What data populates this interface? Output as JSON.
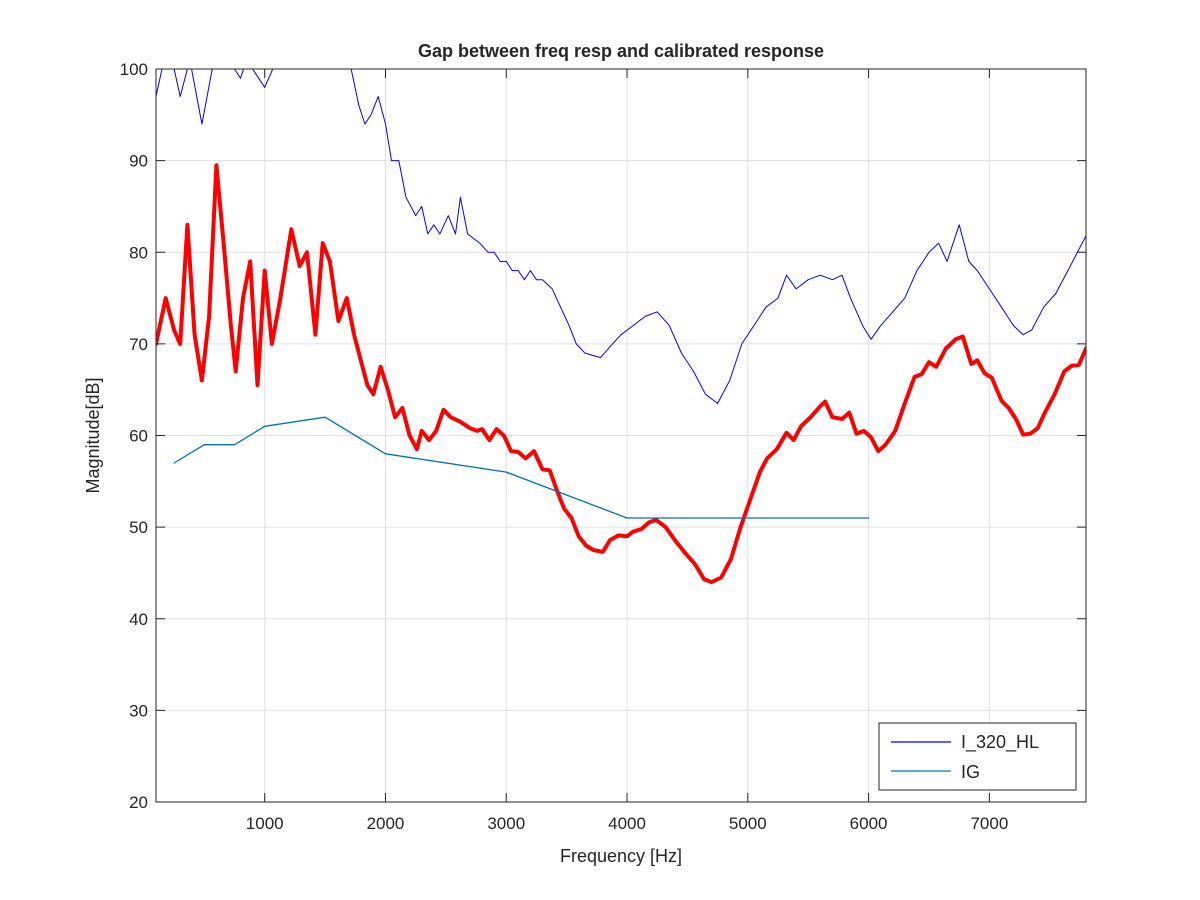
{
  "chart_data": {
    "type": "line",
    "title": "Gap between freq resp and calibrated response",
    "xlabel": "Frequency [Hz]",
    "ylabel": "Magnitude[dB]",
    "xlim": [
      100,
      7800
    ],
    "ylim": [
      20,
      100
    ],
    "xticks": [
      1000,
      2000,
      3000,
      4000,
      5000,
      6000,
      7000
    ],
    "yticks": [
      20,
      30,
      40,
      50,
      60,
      70,
      80,
      90,
      100
    ],
    "grid": true,
    "legend_position": "bottom-right",
    "series": [
      {
        "name": "I_320_HL",
        "color": "#0000ff",
        "width": 1,
        "in_legend": true,
        "points": [
          [
            100,
            97
          ],
          [
            150,
            100
          ],
          [
            250,
            100
          ],
          [
            300,
            97
          ],
          [
            380,
            101
          ],
          [
            480,
            94
          ],
          [
            580,
            101
          ],
          [
            700,
            101
          ],
          [
            800,
            99
          ],
          [
            850,
            101
          ],
          [
            1000,
            98
          ],
          [
            1100,
            101
          ],
          [
            1450,
            101
          ],
          [
            1550,
            101
          ],
          [
            1700,
            101
          ],
          [
            1780,
            96
          ],
          [
            1830,
            94
          ],
          [
            1880,
            95
          ],
          [
            1940,
            97
          ],
          [
            2000,
            94
          ],
          [
            2050,
            90
          ],
          [
            2110,
            90
          ],
          [
            2170,
            86
          ],
          [
            2250,
            84
          ],
          [
            2300,
            85
          ],
          [
            2350,
            82
          ],
          [
            2400,
            83
          ],
          [
            2450,
            82
          ],
          [
            2520,
            84
          ],
          [
            2580,
            82
          ],
          [
            2620,
            86
          ],
          [
            2680,
            82
          ],
          [
            2780,
            81
          ],
          [
            2850,
            80
          ],
          [
            2900,
            80
          ],
          [
            2950,
            79
          ],
          [
            3000,
            79
          ],
          [
            3050,
            78
          ],
          [
            3100,
            78
          ],
          [
            3150,
            77
          ],
          [
            3200,
            78
          ],
          [
            3250,
            77
          ],
          [
            3300,
            77
          ],
          [
            3380,
            76
          ],
          [
            3450,
            74
          ],
          [
            3520,
            72
          ],
          [
            3580,
            70
          ],
          [
            3650,
            69
          ],
          [
            3780,
            68.5
          ],
          [
            3880,
            70
          ],
          [
            3950,
            71
          ],
          [
            4050,
            72
          ],
          [
            4150,
            73
          ],
          [
            4250,
            73.5
          ],
          [
            4350,
            72
          ],
          [
            4450,
            69
          ],
          [
            4550,
            67
          ],
          [
            4650,
            64.5
          ],
          [
            4750,
            63.5
          ],
          [
            4850,
            66
          ],
          [
            4950,
            70
          ],
          [
            5050,
            72
          ],
          [
            5150,
            74
          ],
          [
            5250,
            75
          ],
          [
            5320,
            77.5
          ],
          [
            5400,
            76
          ],
          [
            5500,
            77
          ],
          [
            5600,
            77.5
          ],
          [
            5700,
            77
          ],
          [
            5780,
            77.5
          ],
          [
            5850,
            75
          ],
          [
            5950,
            72
          ],
          [
            6020,
            70.5
          ],
          [
            6100,
            72
          ],
          [
            6200,
            73.5
          ],
          [
            6300,
            75
          ],
          [
            6400,
            78
          ],
          [
            6500,
            80
          ],
          [
            6580,
            81
          ],
          [
            6650,
            79
          ],
          [
            6750,
            83
          ],
          [
            6830,
            79
          ],
          [
            6900,
            78
          ],
          [
            7000,
            76
          ],
          [
            7100,
            74
          ],
          [
            7200,
            72
          ],
          [
            7280,
            71
          ],
          [
            7350,
            71.5
          ],
          [
            7450,
            74
          ],
          [
            7550,
            75.5
          ],
          [
            7650,
            78
          ],
          [
            7800,
            81.8
          ]
        ]
      },
      {
        "name": "IG",
        "color": "#0072bd",
        "width": 1.3,
        "in_legend": true,
        "points": [
          [
            250,
            57
          ],
          [
            500,
            59
          ],
          [
            750,
            59
          ],
          [
            1000,
            61
          ],
          [
            1500,
            62
          ],
          [
            2000,
            58
          ],
          [
            3000,
            56
          ],
          [
            4000,
            51
          ],
          [
            6000,
            51
          ]
        ]
      },
      {
        "name": "",
        "color": "#ff0000",
        "width": 4,
        "in_legend": false,
        "points": [
          [
            100,
            70
          ],
          [
            180,
            75
          ],
          [
            250,
            71.5
          ],
          [
            300,
            70
          ],
          [
            360,
            83
          ],
          [
            420,
            71
          ],
          [
            480,
            66
          ],
          [
            540,
            73
          ],
          [
            600,
            89.5
          ],
          [
            660,
            81
          ],
          [
            720,
            72
          ],
          [
            760,
            67
          ],
          [
            820,
            75
          ],
          [
            880,
            79
          ],
          [
            940,
            65.5
          ],
          [
            1000,
            78
          ],
          [
            1060,
            70
          ],
          [
            1130,
            75
          ],
          [
            1220,
            82.5
          ],
          [
            1290,
            78.5
          ],
          [
            1350,
            80
          ],
          [
            1420,
            71
          ],
          [
            1480,
            81
          ],
          [
            1540,
            79
          ],
          [
            1610,
            72.5
          ],
          [
            1680,
            75
          ],
          [
            1740,
            71
          ],
          [
            1800,
            68
          ],
          [
            1850,
            65.5
          ],
          [
            1900,
            64.5
          ],
          [
            1960,
            67.5
          ],
          [
            2020,
            65
          ],
          [
            2080,
            62
          ],
          [
            2140,
            63
          ],
          [
            2200,
            60
          ],
          [
            2260,
            58.5
          ],
          [
            2300,
            60.5
          ],
          [
            2360,
            59.5
          ],
          [
            2420,
            60.5
          ],
          [
            2480,
            62.8
          ],
          [
            2540,
            62
          ],
          [
            2620,
            61.5
          ],
          [
            2700,
            60.8
          ],
          [
            2760,
            60.5
          ],
          [
            2800,
            60.7
          ],
          [
            2860,
            59.5
          ],
          [
            2920,
            60.7
          ],
          [
            2980,
            60
          ],
          [
            3040,
            58.3
          ],
          [
            3100,
            58.2
          ],
          [
            3160,
            57.5
          ],
          [
            3230,
            58.3
          ],
          [
            3300,
            56.3
          ],
          [
            3360,
            56.2
          ],
          [
            3420,
            54
          ],
          [
            3480,
            52
          ],
          [
            3540,
            51
          ],
          [
            3600,
            49
          ],
          [
            3660,
            48
          ],
          [
            3720,
            47.5
          ],
          [
            3800,
            47.3
          ],
          [
            3860,
            48.6
          ],
          [
            3930,
            49.1
          ],
          [
            4000,
            49
          ],
          [
            4050,
            49.5
          ],
          [
            4120,
            49.8
          ],
          [
            4180,
            50.5
          ],
          [
            4240,
            50.8
          ],
          [
            4320,
            50
          ],
          [
            4400,
            48.5
          ],
          [
            4480,
            47.2
          ],
          [
            4560,
            46
          ],
          [
            4640,
            44.3
          ],
          [
            4700,
            44
          ],
          [
            4780,
            44.5
          ],
          [
            4860,
            46.5
          ],
          [
            4940,
            50
          ],
          [
            5020,
            53
          ],
          [
            5100,
            56
          ],
          [
            5160,
            57.5
          ],
          [
            5240,
            58.5
          ],
          [
            5320,
            60.3
          ],
          [
            5380,
            59.5
          ],
          [
            5440,
            61
          ],
          [
            5520,
            62
          ],
          [
            5600,
            63.2
          ],
          [
            5640,
            63.7
          ],
          [
            5700,
            62
          ],
          [
            5780,
            61.8
          ],
          [
            5840,
            62.5
          ],
          [
            5900,
            60.2
          ],
          [
            5960,
            60.5
          ],
          [
            6020,
            59.8
          ],
          [
            6080,
            58.3
          ],
          [
            6140,
            59
          ],
          [
            6220,
            60.5
          ],
          [
            6300,
            63.5
          ],
          [
            6380,
            66.4
          ],
          [
            6440,
            66.7
          ],
          [
            6500,
            68
          ],
          [
            6560,
            67.5
          ],
          [
            6640,
            69.5
          ],
          [
            6720,
            70.5
          ],
          [
            6780,
            70.8
          ],
          [
            6850,
            67.8
          ],
          [
            6900,
            68.2
          ],
          [
            6960,
            66.8
          ],
          [
            7020,
            66.3
          ],
          [
            7100,
            63.8
          ],
          [
            7160,
            63
          ],
          [
            7220,
            61.8
          ],
          [
            7280,
            60.1
          ],
          [
            7340,
            60.2
          ],
          [
            7400,
            60.8
          ],
          [
            7460,
            62.5
          ],
          [
            7540,
            64.5
          ],
          [
            7620,
            67
          ],
          [
            7680,
            67.6
          ],
          [
            7740,
            67.7
          ],
          [
            7800,
            69.5
          ]
        ]
      }
    ]
  }
}
